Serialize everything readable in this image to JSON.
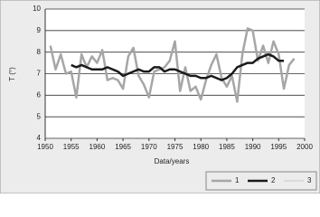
{
  "chart_data": {
    "type": "line",
    "x_label": "Data/years",
    "y_label": "T (°)",
    "x": [
      1951,
      1952,
      1953,
      1954,
      1955,
      1956,
      1957,
      1958,
      1959,
      1960,
      1961,
      1962,
      1963,
      1964,
      1965,
      1966,
      1967,
      1968,
      1969,
      1970,
      1971,
      1972,
      1973,
      1974,
      1975,
      1976,
      1977,
      1978,
      1979,
      1980,
      1981,
      1982,
      1983,
      1984,
      1985,
      1986,
      1987,
      1988,
      1989,
      1990,
      1991,
      1992,
      1993,
      1994,
      1995,
      1996,
      1997,
      1998
    ],
    "series": [
      {
        "name": "1",
        "color": "#a6a6a6",
        "width": 2.5,
        "values": [
          8.3,
          7.2,
          7.9,
          7.0,
          7.1,
          5.9,
          7.9,
          7.3,
          7.8,
          7.5,
          8.1,
          6.7,
          6.8,
          6.7,
          6.3,
          7.8,
          8.2,
          6.9,
          6.5,
          5.9,
          7.1,
          7.2,
          7.3,
          7.6,
          8.5,
          6.2,
          7.3,
          6.2,
          6.4,
          5.8,
          6.7,
          7.4,
          7.9,
          6.8,
          6.4,
          6.9,
          5.7,
          7.9,
          9.1,
          9.0,
          7.6,
          8.3,
          7.5,
          8.5,
          7.9,
          6.3,
          7.4,
          7.7
        ]
      },
      {
        "name": "2",
        "color": "#1a1a1a",
        "width": 2.5,
        "values": [
          null,
          null,
          null,
          null,
          7.4,
          7.3,
          7.4,
          7.3,
          7.2,
          7.2,
          7.2,
          7.3,
          7.2,
          7.1,
          6.9,
          7.0,
          7.1,
          7.2,
          7.1,
          7.1,
          7.3,
          7.3,
          7.1,
          7.2,
          7.2,
          7.1,
          7.0,
          6.9,
          6.9,
          6.8,
          6.8,
          6.9,
          6.8,
          6.7,
          6.8,
          7.0,
          7.3,
          7.4,
          7.5,
          7.5,
          7.7,
          7.8,
          7.9,
          7.8,
          7.6,
          7.6,
          null,
          null
        ]
      },
      {
        "name": "3",
        "color": "#c8c8c8",
        "width": 1,
        "values": [
          null,
          null,
          null,
          null,
          null,
          null,
          null,
          null,
          null,
          null,
          null,
          null,
          null,
          null,
          null,
          null,
          null,
          null,
          null,
          null,
          null,
          null,
          null,
          null,
          null,
          null,
          null,
          null,
          null,
          null,
          null,
          null,
          null,
          null,
          null,
          null,
          null,
          null,
          null,
          null,
          null,
          null,
          null,
          null,
          null,
          null,
          null,
          null
        ]
      }
    ],
    "xlim": [
      1950,
      2000
    ],
    "xticks": [
      1950,
      1955,
      1960,
      1965,
      1970,
      1975,
      1980,
      1985,
      1990,
      1995,
      2000
    ],
    "ylim": [
      4,
      10
    ],
    "yticks": [
      4,
      5,
      6,
      7,
      8,
      9,
      10
    ],
    "grid": true,
    "legend": "bottom-right"
  }
}
